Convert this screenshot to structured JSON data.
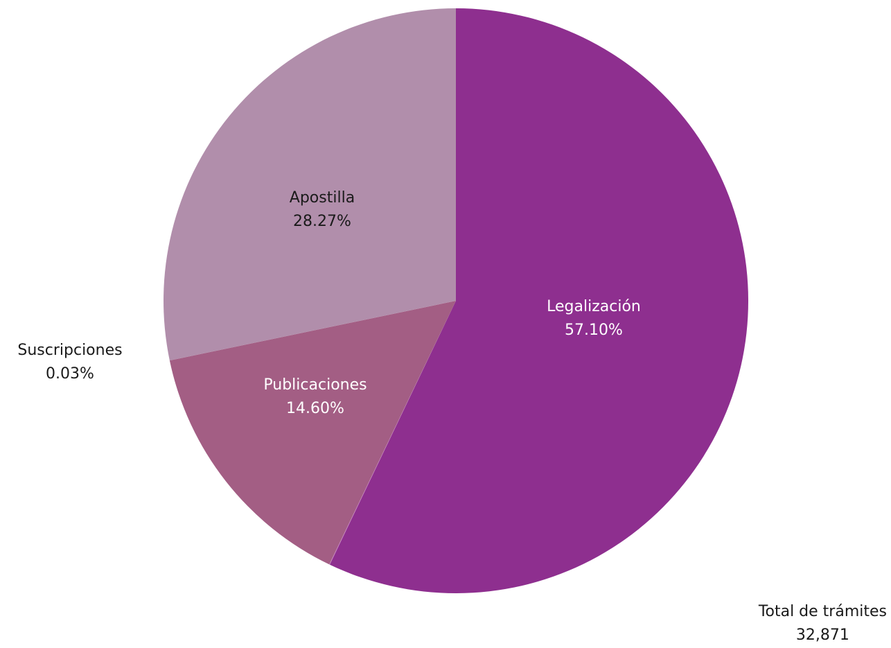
{
  "chart_data": {
    "type": "pie",
    "start_angle_deg": 0,
    "direction": "clockwise",
    "slices": [
      {
        "label": "Legalización",
        "percent_label": "57.10%",
        "value": 57.1,
        "color": "#8e2f8f",
        "label_color": "#ffffff"
      },
      {
        "label": "Suscripciones",
        "percent_label": "0.03%",
        "value": 0.03,
        "color": "#c47bbf",
        "label_color": "#1a1a1a",
        "label_outside": true
      },
      {
        "label": "Publicaciones",
        "percent_label": "14.60%",
        "value": 14.6,
        "color": "#a35e84",
        "label_color": "#ffffff"
      },
      {
        "label": "Apostilla",
        "percent_label": "28.27%",
        "value": 28.27,
        "color": "#b18eab",
        "label_color": "#1a1a1a"
      }
    ]
  },
  "total": {
    "label": "Total de trámites",
    "value": "32,871"
  }
}
